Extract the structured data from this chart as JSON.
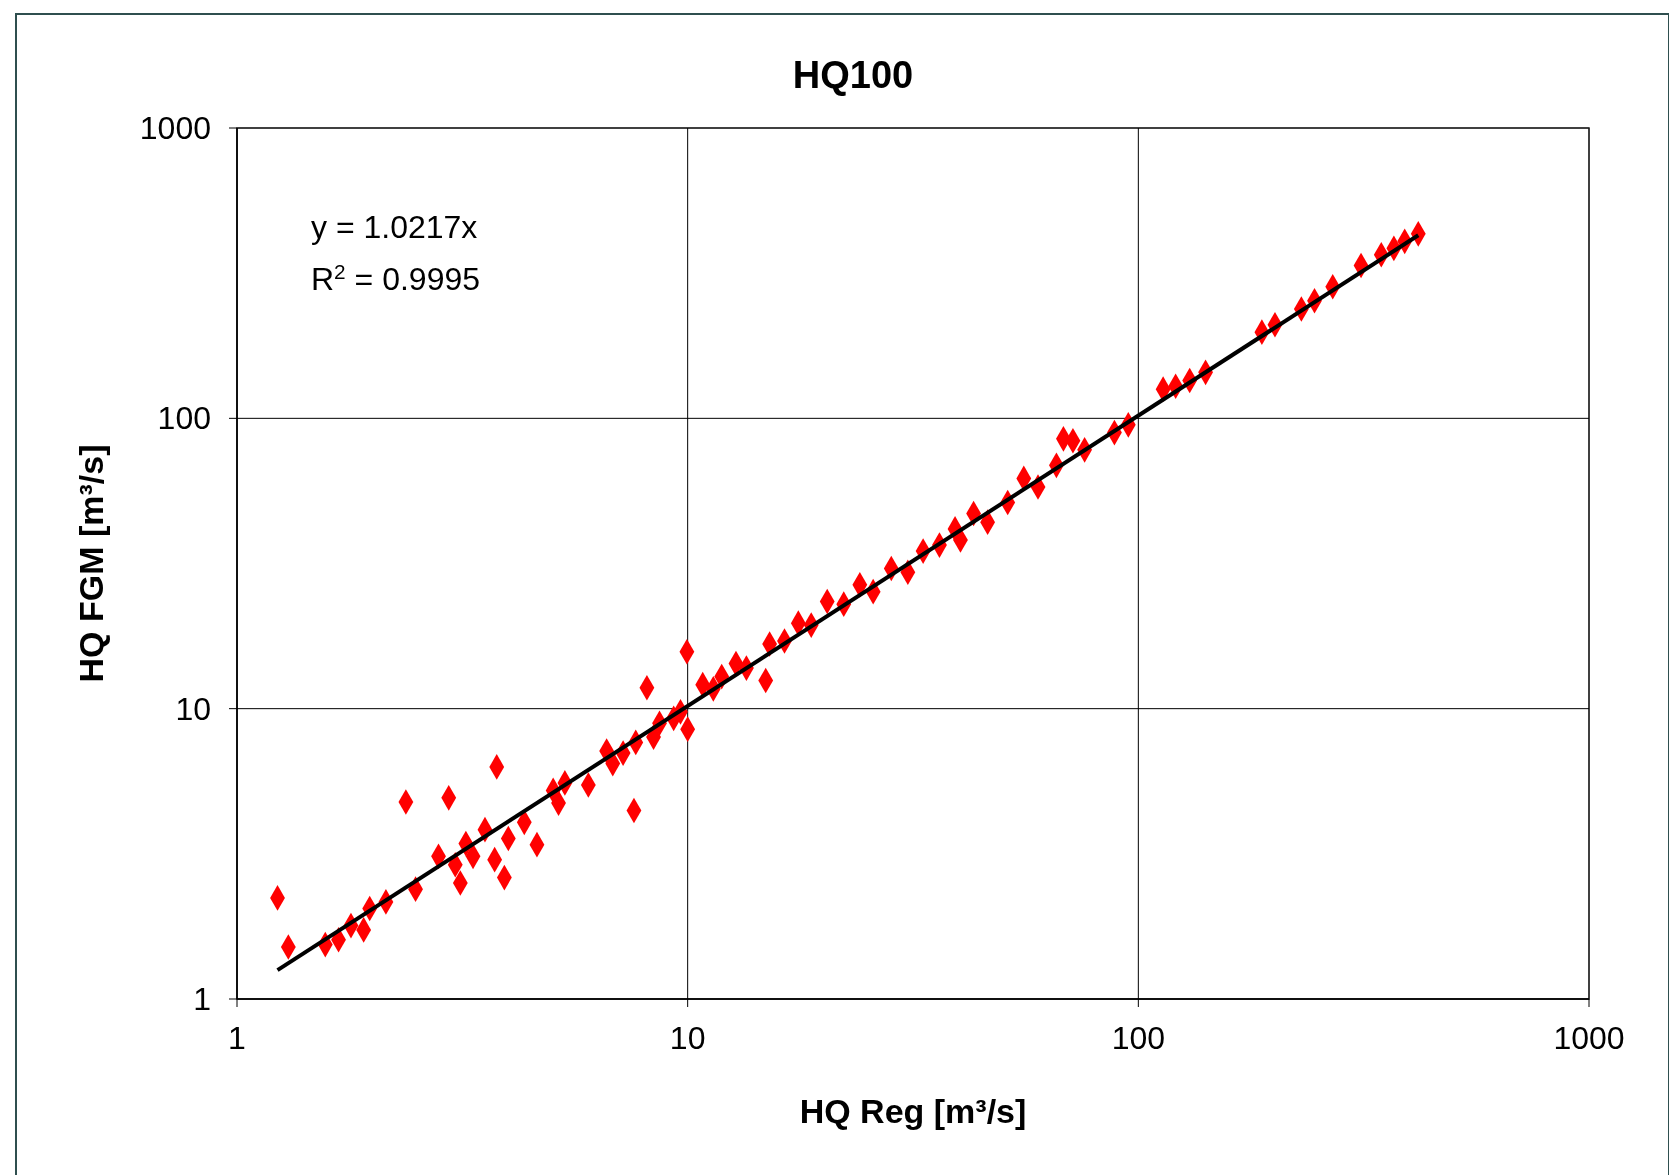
{
  "chart_data": {
    "type": "scatter",
    "title": "HQ100",
    "xlabel": "HQ Reg [m³/s]",
    "ylabel": "HQ FGM [m³/s]",
    "log": "xy",
    "xlim": [
      1,
      1000
    ],
    "ylim": [
      1,
      1000
    ],
    "xticks": [
      1,
      10,
      100,
      1000
    ],
    "yticks": [
      1,
      10,
      100,
      1000
    ],
    "grid": true,
    "annotations": [
      "y = 1.0217x",
      "R$^{2}$ = 0.9995"
    ],
    "series": [
      {
        "marker": "diamond",
        "color": "#ff0000",
        "x": [
          1.23,
          1.3,
          1.57,
          1.68,
          1.79,
          1.91,
          1.97,
          2.14,
          2.37,
          2.49,
          2.8,
          2.95,
          3.05,
          3.13,
          3.22,
          3.34,
          3.55,
          3.73,
          3.77,
          3.92,
          4.0,
          4.34,
          4.63,
          5.03,
          5.17,
          5.34,
          6.02,
          6.61,
          6.82,
          7.19,
          7.6,
          7.67,
          8.12,
          8.4,
          8.66,
          9.31,
          9.64,
          9.96,
          10.0,
          10.8,
          11.4,
          11.9,
          12.8,
          13.5,
          14.9,
          15.2,
          16.4,
          17.6,
          18.8,
          20.4,
          22.2,
          24.1,
          25.8,
          28.3,
          30.8,
          33.3,
          36.2,
          39.2,
          40.3,
          43.1,
          46.3,
          51.3,
          55.7,
          59.9,
          65.8,
          68.2,
          71.6,
          76,
          88.5,
          95,
          113.5,
          121,
          130,
          141,
          188,
          201,
          230,
          246,
          270,
          312,
          346,
          369,
          390,
          418
        ],
        "values": [
          2.23,
          1.51,
          1.54,
          1.6,
          1.79,
          1.73,
          2.05,
          2.16,
          4.77,
          2.39,
          3.1,
          4.93,
          2.9,
          2.51,
          3.43,
          3.1,
          3.83,
          3.02,
          6.3,
          2.62,
          3.57,
          4.06,
          3.4,
          5.23,
          4.73,
          5.55,
          5.46,
          7.15,
          6.47,
          7.03,
          4.46,
          7.65,
          11.8,
          7.98,
          8.91,
          9.26,
          9.75,
          15.7,
          8.5,
          12.1,
          11.7,
          12.9,
          14.3,
          13.8,
          12.5,
          16.7,
          17.1,
          19.7,
          19.4,
          23.4,
          22.9,
          26.7,
          25.3,
          30.4,
          29.5,
          34.9,
          36.6,
          41.6,
          38.1,
          47,
          43.9,
          51.3,
          62.1,
          58,
          68.9,
          85,
          83.7,
          77.9,
          89.3,
          95,
          126,
          129,
          135,
          144,
          198,
          210,
          238,
          254,
          284,
          336,
          366,
          385,
          407,
          432
        ]
      },
      {
        "type": "line",
        "color": "#000000",
        "x": [
          1.23,
          418
        ],
        "values": [
          1.257,
          427.1
        ]
      }
    ]
  }
}
